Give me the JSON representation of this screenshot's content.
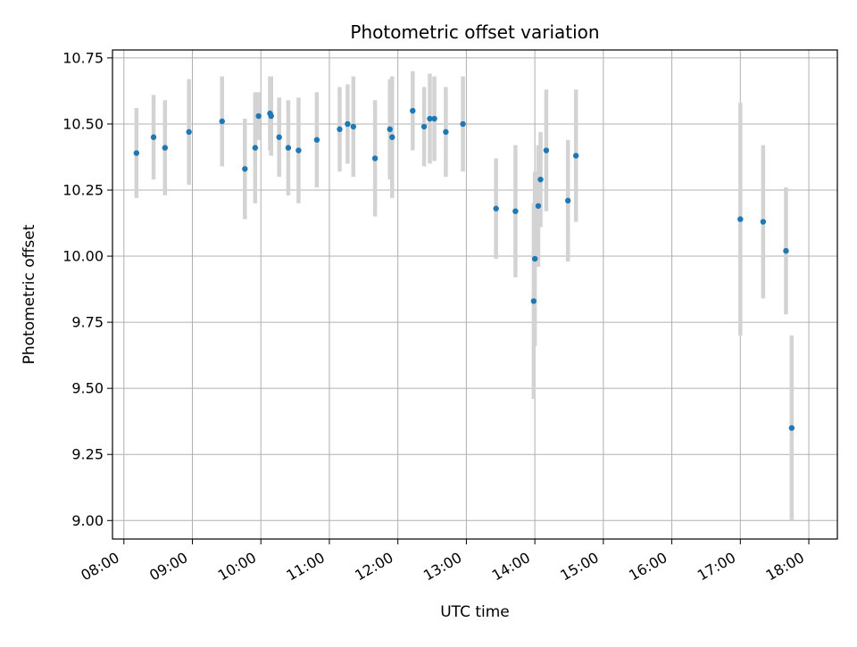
{
  "chart_data": {
    "type": "scatter",
    "title": "Photometric offset variation",
    "xlabel": "UTC time",
    "ylabel": "Photometric offset",
    "xlim": [
      "07:50",
      "18:25"
    ],
    "ylim": [
      8.93,
      10.78
    ],
    "x_ticks": [
      "08:00",
      "09:00",
      "10:00",
      "11:00",
      "12:00",
      "13:00",
      "14:00",
      "15:00",
      "16:00",
      "17:00",
      "18:00"
    ],
    "y_ticks": [
      "9.00",
      "9.25",
      "9.50",
      "9.75",
      "10.00",
      "10.25",
      "10.50",
      "10.75"
    ],
    "grid": true,
    "colors": {
      "marker": "#1f77b4",
      "errorbar": "#d3d3d3",
      "grid": "#b0b0b0"
    },
    "series": [
      {
        "points": [
          {
            "time": "08:11",
            "y": 10.39,
            "err": 0.17
          },
          {
            "time": "08:26",
            "y": 10.45,
            "err": 0.16
          },
          {
            "time": "08:36",
            "y": 10.41,
            "err": 0.18
          },
          {
            "time": "08:57",
            "y": 10.47,
            "err": 0.2
          },
          {
            "time": "09:26",
            "y": 10.51,
            "err": 0.17
          },
          {
            "time": "09:46",
            "y": 10.33,
            "err": 0.19
          },
          {
            "time": "09:55",
            "y": 10.41,
            "err": 0.21
          },
          {
            "time": "09:58",
            "y": 10.53,
            "err": 0.09
          },
          {
            "time": "10:08",
            "y": 10.54,
            "err": 0.14
          },
          {
            "time": "10:09",
            "y": 10.53,
            "err": 0.15
          },
          {
            "time": "10:16",
            "y": 10.45,
            "err": 0.15
          },
          {
            "time": "10:24",
            "y": 10.41,
            "err": 0.18
          },
          {
            "time": "10:33",
            "y": 10.4,
            "err": 0.2
          },
          {
            "time": "10:49",
            "y": 10.44,
            "err": 0.18
          },
          {
            "time": "11:09",
            "y": 10.48,
            "err": 0.16
          },
          {
            "time": "11:16",
            "y": 10.5,
            "err": 0.15
          },
          {
            "time": "11:21",
            "y": 10.49,
            "err": 0.19
          },
          {
            "time": "11:40",
            "y": 10.37,
            "err": 0.22
          },
          {
            "time": "11:53",
            "y": 10.48,
            "err": 0.19
          },
          {
            "time": "11:55",
            "y": 10.45,
            "err": 0.23
          },
          {
            "time": "12:13",
            "y": 10.55,
            "err": 0.15
          },
          {
            "time": "12:23",
            "y": 10.49,
            "err": 0.15
          },
          {
            "time": "12:28",
            "y": 10.52,
            "err": 0.17
          },
          {
            "time": "12:32",
            "y": 10.52,
            "err": 0.16
          },
          {
            "time": "12:42",
            "y": 10.47,
            "err": 0.17
          },
          {
            "time": "12:57",
            "y": 10.5,
            "err": 0.18
          },
          {
            "time": "13:26",
            "y": 10.18,
            "err": 0.19
          },
          {
            "time": "13:43",
            "y": 10.17,
            "err": 0.25
          },
          {
            "time": "13:59",
            "y": 9.83,
            "err": 0.37
          },
          {
            "time": "14:00",
            "y": 9.99,
            "err": 0.33
          },
          {
            "time": "14:03",
            "y": 10.19,
            "err": 0.23
          },
          {
            "time": "14:05",
            "y": 10.29,
            "err": 0.18
          },
          {
            "time": "14:10",
            "y": 10.4,
            "err": 0.23
          },
          {
            "time": "14:29",
            "y": 10.21,
            "err": 0.23
          },
          {
            "time": "14:36",
            "y": 10.38,
            "err": 0.25
          },
          {
            "time": "17:00",
            "y": 10.14,
            "err": 0.44
          },
          {
            "time": "17:20",
            "y": 10.13,
            "err": 0.29
          },
          {
            "time": "17:40",
            "y": 10.02,
            "err": 0.24
          },
          {
            "time": "17:45",
            "y": 9.35,
            "err": 0.35
          }
        ]
      }
    ]
  }
}
